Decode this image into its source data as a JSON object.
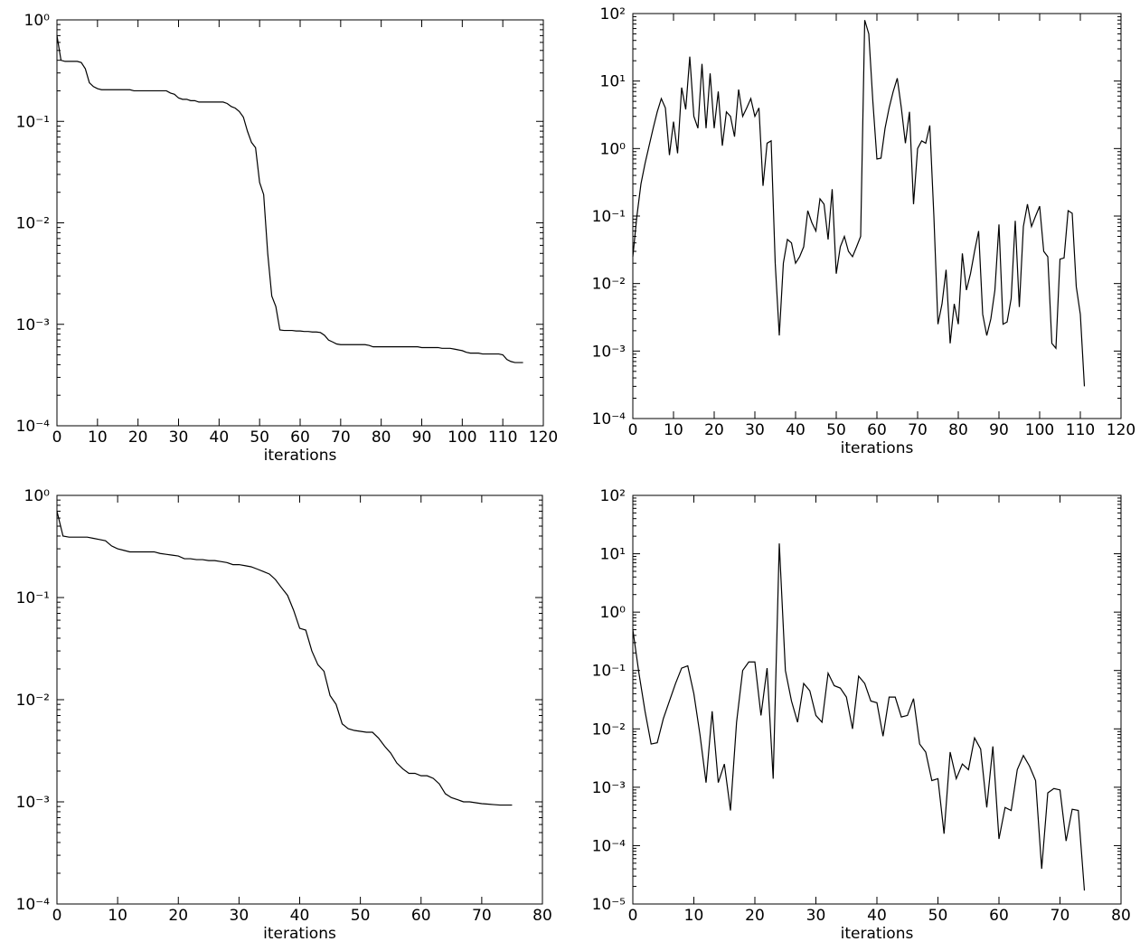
{
  "chart_data": [
    {
      "type": "line",
      "x_label": "iterations",
      "log_y": true,
      "xlim": [
        0,
        120
      ],
      "xticks": [
        0,
        10,
        20,
        30,
        40,
        50,
        60,
        70,
        80,
        90,
        100,
        110,
        120
      ],
      "ylim": [
        0.0001,
        1
      ],
      "yticks": [
        {
          "value": 0.0001,
          "label": "10⁻⁴"
        },
        {
          "value": 0.001,
          "label": "10⁻³"
        },
        {
          "value": 0.01,
          "label": "10⁻²"
        },
        {
          "value": 0.1,
          "label": "10⁻¹"
        },
        {
          "value": 1,
          "label": "10⁰"
        }
      ],
      "series": [
        {
          "color": "#000000",
          "values": [
            0.7,
            0.4,
            0.39,
            0.39,
            0.39,
            0.39,
            0.38,
            0.33,
            0.24,
            0.22,
            0.21,
            0.205,
            0.205,
            0.205,
            0.205,
            0.205,
            0.205,
            0.205,
            0.205,
            0.2,
            0.2,
            0.2,
            0.2,
            0.2,
            0.2,
            0.2,
            0.2,
            0.2,
            0.19,
            0.185,
            0.17,
            0.165,
            0.165,
            0.16,
            0.16,
            0.155,
            0.155,
            0.155,
            0.155,
            0.155,
            0.155,
            0.155,
            0.15,
            0.14,
            0.135,
            0.125,
            0.11,
            0.08,
            0.062,
            0.055,
            0.025,
            0.019,
            0.005,
            0.0019,
            0.0015,
            0.00088,
            0.00087,
            0.00087,
            0.00087,
            0.00086,
            0.00086,
            0.00085,
            0.00085,
            0.00084,
            0.00084,
            0.00083,
            0.00078,
            0.0007,
            0.00067,
            0.00064,
            0.00063,
            0.00063,
            0.00063,
            0.00063,
            0.00063,
            0.00063,
            0.00063,
            0.00062,
            0.0006,
            0.0006,
            0.0006,
            0.0006,
            0.0006,
            0.0006,
            0.0006,
            0.0006,
            0.0006,
            0.0006,
            0.0006,
            0.0006,
            0.00059,
            0.00059,
            0.00059,
            0.00059,
            0.00059,
            0.00058,
            0.00058,
            0.00058,
            0.00057,
            0.00056,
            0.00055,
            0.00053,
            0.00052,
            0.00052,
            0.00052,
            0.00051,
            0.00051,
            0.00051,
            0.00051,
            0.00051,
            0.0005,
            0.00045,
            0.00043,
            0.00042,
            0.00042,
            0.00042
          ]
        }
      ]
    },
    {
      "type": "line",
      "x_label": "iterations",
      "log_y": true,
      "xlim": [
        0,
        120
      ],
      "xticks": [
        0,
        10,
        20,
        30,
        40,
        50,
        60,
        70,
        80,
        90,
        100,
        110,
        120
      ],
      "ylim": [
        0.0001,
        100
      ],
      "yticks": [
        {
          "value": 0.0001,
          "label": "10⁻⁴"
        },
        {
          "value": 0.001,
          "label": "10⁻³"
        },
        {
          "value": 0.01,
          "label": "10⁻²"
        },
        {
          "value": 0.1,
          "label": "10⁻¹"
        },
        {
          "value": 1,
          "label": "10⁰"
        },
        {
          "value": 10,
          "label": "10¹"
        },
        {
          "value": 100,
          "label": "10²"
        }
      ],
      "series": [
        {
          "color": "#000000",
          "values": [
            0.025,
            0.1,
            0.3,
            0.6,
            1.1,
            2,
            3.5,
            5.5,
            4,
            0.8,
            2.5,
            0.85,
            8,
            3.8,
            23,
            3,
            2,
            18,
            2,
            13,
            2,
            7,
            1.1,
            3.5,
            3,
            1.5,
            7.5,
            3,
            4,
            5.5,
            3,
            4,
            0.28,
            1.2,
            1.3,
            0.02,
            0.0017,
            0.02,
            0.045,
            0.04,
            0.02,
            0.025,
            0.035,
            0.12,
            0.08,
            0.06,
            0.18,
            0.15,
            0.045,
            0.25,
            0.014,
            0.035,
            0.05,
            0.03,
            0.025,
            0.035,
            0.05,
            80,
            50,
            5,
            0.7,
            0.72,
            2,
            4,
            7,
            11,
            4,
            1.2,
            3.5,
            0.15,
            1,
            1.3,
            1.2,
            2.2,
            0.1,
            0.0025,
            0.005,
            0.016,
            0.0013,
            0.005,
            0.0025,
            0.028,
            0.008,
            0.014,
            0.03,
            0.06,
            0.0035,
            0.0017,
            0.003,
            0.008,
            0.075,
            0.0025,
            0.0027,
            0.006,
            0.085,
            0.0045,
            0.07,
            0.15,
            0.07,
            0.1,
            0.14,
            0.03,
            0.025,
            0.0013,
            0.0011,
            0.023,
            0.024,
            0.12,
            0.11,
            0.009,
            0.0035,
            0.0003
          ]
        }
      ]
    },
    {
      "type": "line",
      "x_label": "iterations",
      "log_y": true,
      "xlim": [
        0,
        80
      ],
      "xticks": [
        0,
        10,
        20,
        30,
        40,
        50,
        60,
        70,
        80
      ],
      "ylim": [
        0.0001,
        1
      ],
      "yticks": [
        {
          "value": 0.0001,
          "label": "10⁻⁴"
        },
        {
          "value": 0.001,
          "label": "10⁻³"
        },
        {
          "value": 0.01,
          "label": "10⁻²"
        },
        {
          "value": 0.1,
          "label": "10⁻¹"
        },
        {
          "value": 1,
          "label": "10⁰"
        }
      ],
      "series": [
        {
          "color": "#000000",
          "values": [
            0.7,
            0.4,
            0.39,
            0.39,
            0.39,
            0.39,
            0.38,
            0.37,
            0.36,
            0.32,
            0.3,
            0.29,
            0.28,
            0.28,
            0.28,
            0.28,
            0.28,
            0.27,
            0.265,
            0.26,
            0.255,
            0.24,
            0.24,
            0.235,
            0.235,
            0.23,
            0.23,
            0.225,
            0.22,
            0.21,
            0.21,
            0.205,
            0.2,
            0.19,
            0.18,
            0.17,
            0.15,
            0.125,
            0.105,
            0.075,
            0.05,
            0.048,
            0.03,
            0.022,
            0.019,
            0.011,
            0.009,
            0.0058,
            0.0052,
            0.005,
            0.0049,
            0.0048,
            0.0048,
            0.0042,
            0.0035,
            0.003,
            0.0024,
            0.0021,
            0.0019,
            0.0019,
            0.0018,
            0.0018,
            0.0017,
            0.0015,
            0.0012,
            0.0011,
            0.00105,
            0.001,
            0.001,
            0.00098,
            0.00096,
            0.00095,
            0.00094,
            0.00093,
            0.00093,
            0.00093
          ]
        }
      ]
    },
    {
      "type": "line",
      "x_label": "iterations",
      "log_y": true,
      "xlim": [
        0,
        80
      ],
      "xticks": [
        0,
        10,
        20,
        30,
        40,
        50,
        60,
        70,
        80
      ],
      "ylim": [
        1e-05,
        100
      ],
      "yticks": [
        {
          "value": 1e-05,
          "label": "10⁻⁵"
        },
        {
          "value": 0.0001,
          "label": "10⁻⁴"
        },
        {
          "value": 0.001,
          "label": "10⁻³"
        },
        {
          "value": 0.01,
          "label": "10⁻²"
        },
        {
          "value": 0.1,
          "label": "10⁻¹"
        },
        {
          "value": 1,
          "label": "10⁰"
        },
        {
          "value": 10,
          "label": "10¹"
        },
        {
          "value": 100,
          "label": "10²"
        }
      ],
      "series": [
        {
          "color": "#000000",
          "values": [
            0.5,
            0.09,
            0.02,
            0.0055,
            0.0058,
            0.015,
            0.03,
            0.06,
            0.11,
            0.12,
            0.04,
            0.008,
            0.0012,
            0.02,
            0.0012,
            0.0025,
            0.0004,
            0.013,
            0.1,
            0.14,
            0.14,
            0.017,
            0.11,
            0.0014,
            15,
            0.1,
            0.03,
            0.013,
            0.06,
            0.045,
            0.017,
            0.013,
            0.09,
            0.055,
            0.05,
            0.035,
            0.01,
            0.08,
            0.06,
            0.03,
            0.028,
            0.0075,
            0.035,
            0.035,
            0.016,
            0.017,
            0.033,
            0.0055,
            0.004,
            0.0013,
            0.0014,
            0.00016,
            0.004,
            0.0014,
            0.0025,
            0.002,
            0.007,
            0.0045,
            0.00045,
            0.005,
            0.00013,
            0.00045,
            0.0004,
            0.002,
            0.0035,
            0.0023,
            0.0013,
            4e-05,
            0.0008,
            0.00095,
            0.0009,
            0.00012,
            0.00042,
            0.0004,
            1.7e-05
          ]
        }
      ]
    }
  ]
}
